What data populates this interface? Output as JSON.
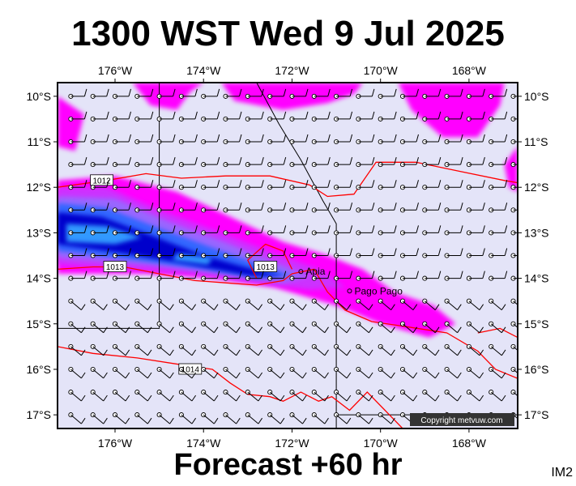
{
  "title": "1300 WST Wed 9 Jul 2025",
  "footer": "Forecast +60 hr",
  "tag": "IM2",
  "copyright": "Copyright metvuw.com",
  "map": {
    "lon_range": [
      -177.3,
      -166.9
    ],
    "lat_range": [
      -17.3,
      -9.7
    ],
    "lon_ticks": [
      {
        "value": -176,
        "label": "176°W"
      },
      {
        "value": -174,
        "label": "174°W"
      },
      {
        "value": -172,
        "label": "172°W"
      },
      {
        "value": -170,
        "label": "170°W"
      },
      {
        "value": -168,
        "label": "168°W"
      }
    ],
    "lat_ticks": [
      {
        "value": -10,
        "label": "10°S"
      },
      {
        "value": -11,
        "label": "11°S"
      },
      {
        "value": -12,
        "label": "12°S"
      },
      {
        "value": -13,
        "label": "13°S"
      },
      {
        "value": -14,
        "label": "14°S"
      },
      {
        "value": -15,
        "label": "15°S"
      },
      {
        "value": -16,
        "label": "16°S"
      },
      {
        "value": -17,
        "label": "17°S"
      }
    ],
    "background_color": "#e4e4f8",
    "precip_colors": [
      "#ff00ff",
      "#cc33ff",
      "#9966ff",
      "#3366ff",
      "#0000cc",
      "#3399ff"
    ],
    "isobar_color": "#ff0000",
    "isobars": [
      {
        "label": "1012",
        "points": [
          [
            -177.3,
            -12.0
          ],
          [
            -176.2,
            -11.85
          ],
          [
            -175.3,
            -11.7
          ],
          [
            -174.5,
            -11.8
          ],
          [
            -173.5,
            -11.75
          ],
          [
            -172.5,
            -11.75
          ],
          [
            -171.6,
            -11.95
          ],
          [
            -171.2,
            -12.2
          ],
          [
            -170.6,
            -12.15
          ],
          [
            -170.1,
            -11.45
          ],
          [
            -169.2,
            -11.45
          ],
          [
            -168.2,
            -11.65
          ],
          [
            -167.2,
            -11.85
          ],
          [
            -166.9,
            -11.9
          ]
        ],
        "label_at": [
          -176.3,
          -11.85
        ]
      },
      {
        "label": "1013",
        "points": [
          [
            -177.3,
            -13.8
          ],
          [
            -176.5,
            -13.75
          ],
          [
            -175.8,
            -13.75
          ],
          [
            -175.0,
            -13.9
          ],
          [
            -174.2,
            -14.05
          ],
          [
            -173.5,
            -14.1
          ],
          [
            -172.8,
            -14.15
          ],
          [
            -172.2,
            -14.05
          ],
          [
            -172.0,
            -13.9
          ],
          [
            -171.5,
            -13.8
          ],
          [
            -171.2,
            -14.3
          ],
          [
            -170.8,
            -14.7
          ],
          [
            -170.2,
            -14.95
          ],
          [
            -169.5,
            -15.05
          ],
          [
            -168.5,
            -15.2
          ],
          [
            -167.8,
            -15.6
          ],
          [
            -167.4,
            -16.0
          ],
          [
            -166.9,
            -16.2
          ]
        ],
        "label_at": [
          -176.0,
          -13.75
        ]
      },
      {
        "label": "1013",
        "points": [
          [
            -172.8,
            -14.0
          ],
          [
            -173.0,
            -13.6
          ],
          [
            -172.6,
            -13.25
          ],
          [
            -172.2,
            -13.4
          ],
          [
            -172.0,
            -13.8
          ]
        ],
        "label_at": [
          -172.6,
          -13.75
        ]
      },
      {
        "label": "1014",
        "points": [
          [
            -177.3,
            -15.5
          ],
          [
            -176.5,
            -15.65
          ],
          [
            -175.5,
            -15.75
          ],
          [
            -174.5,
            -15.9
          ],
          [
            -173.8,
            -16.0
          ],
          [
            -173.4,
            -16.3
          ],
          [
            -173.0,
            -16.55
          ],
          [
            -172.5,
            -16.6
          ],
          [
            -172.2,
            -16.7
          ],
          [
            -171.8,
            -16.5
          ],
          [
            -171.4,
            -16.7
          ],
          [
            -171.1,
            -16.6
          ],
          [
            -170.7,
            -16.9
          ],
          [
            -170.3,
            -16.5
          ],
          [
            -169.9,
            -16.9
          ],
          [
            -169.5,
            -17.3
          ]
        ],
        "label_at": [
          -174.3,
          -16.0
        ]
      },
      {
        "label": "1014",
        "points": [
          [
            -166.9,
            -15.3
          ],
          [
            -167.3,
            -15.1
          ],
          [
            -167.8,
            -15.2
          ]
        ],
        "label_at": null
      }
    ],
    "coastline_color": "#000000",
    "boundary_lines": [
      [
        [
          -172.8,
          -9.7
        ],
        [
          -172.3,
          -10.6
        ],
        [
          -171.8,
          -11.4
        ],
        [
          -171.3,
          -12.3
        ],
        [
          -171.0,
          -12.8
        ],
        [
          -171.0,
          -17.3
        ]
      ],
      [
        [
          -175.0,
          -9.7
        ],
        [
          -175.0,
          -15.1
        ],
        [
          -177.3,
          -15.1
        ]
      ],
      [
        [
          -171.0,
          -17.0
        ],
        [
          -166.9,
          -17.0
        ]
      ]
    ],
    "places": [
      {
        "name": "Apia",
        "lon": -171.8,
        "lat": -13.85
      },
      {
        "name": "Pago Pago",
        "lon": -170.7,
        "lat": -14.28
      }
    ]
  }
}
